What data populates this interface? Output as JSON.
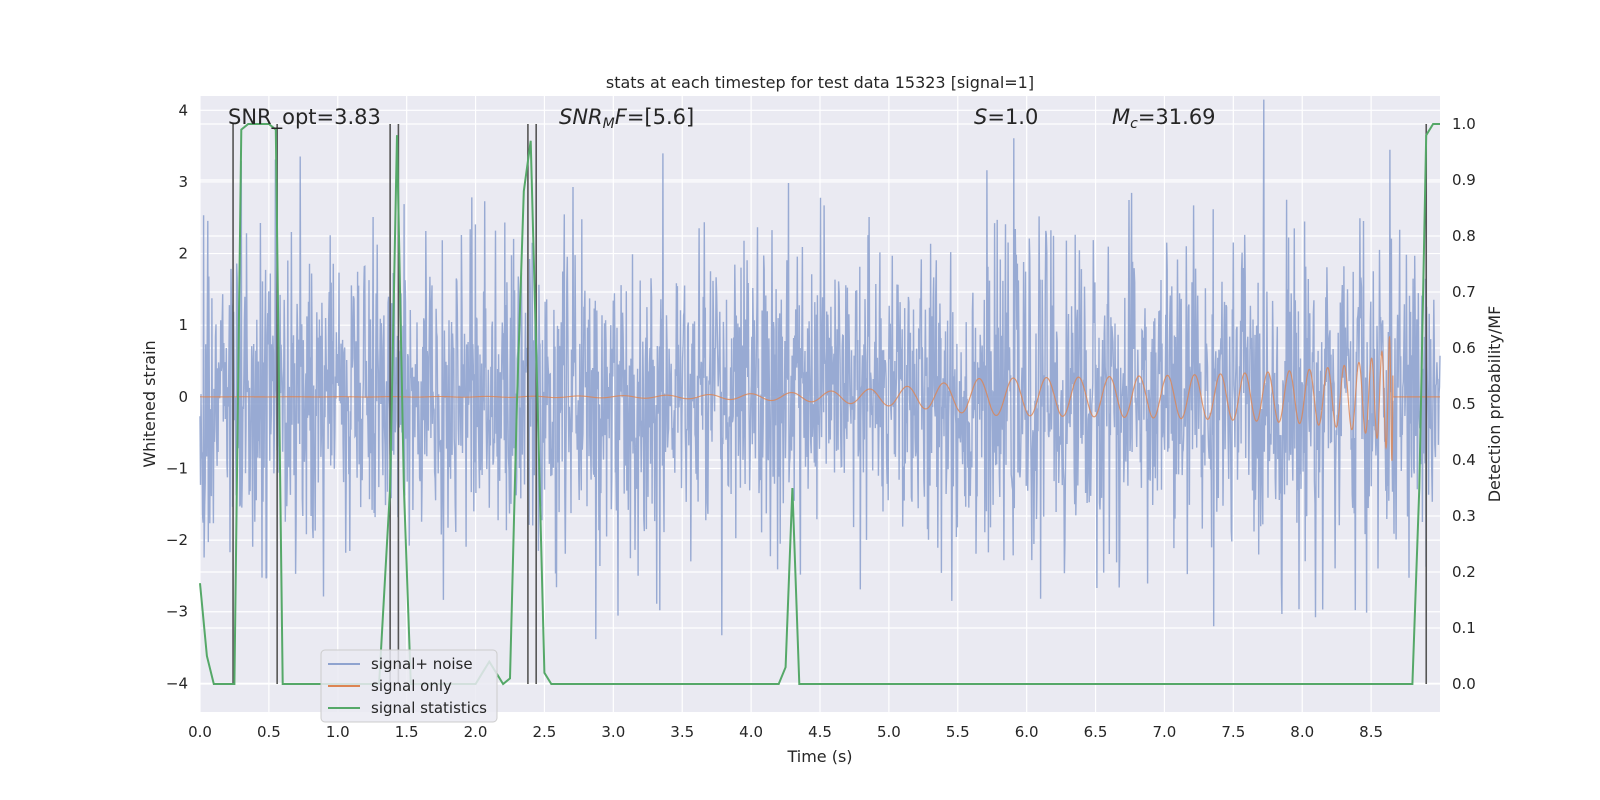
{
  "chart_data": {
    "type": "line",
    "title": "stats at each timestep for test data 15323 [signal=1]",
    "xlabel": "Time (s)",
    "ylabel_left": "Whitened strain",
    "ylabel_right": "Detection probability/MF",
    "xlim": [
      0.0,
      9.0
    ],
    "ylim_left": [
      -4.4,
      4.2
    ],
    "ylim_right": [
      -0.05,
      1.05
    ],
    "x_ticks": [
      "0.0",
      "0.5",
      "1.0",
      "1.5",
      "2.0",
      "2.5",
      "3.0",
      "3.5",
      "4.0",
      "4.5",
      "5.0",
      "5.5",
      "6.0",
      "6.5",
      "7.0",
      "7.5",
      "8.0",
      "8.5"
    ],
    "y_ticks_left": [
      "4",
      "3",
      "2",
      "1",
      "0",
      "−1",
      "−2",
      "−3",
      "−4"
    ],
    "y_ticks_right": [
      "1.0",
      "0.9",
      "0.8",
      "0.7",
      "0.6",
      "0.5",
      "0.4",
      "0.3",
      "0.2",
      "0.1",
      "0.0"
    ],
    "grid": true,
    "legend_position": "lower-left",
    "annotations": {
      "snr_opt": "SNR_opt=3.83",
      "snr_mf_main": "SNR",
      "snr_mf_sub": "M",
      "snr_mf_f": "F",
      "snr_mf_value": "=[5.6]",
      "s_main": "S",
      "s_value": "=1.0",
      "mc_main": "M",
      "mc_sub": "c",
      "mc_value": "=31.69"
    },
    "series": [
      {
        "name": "signal+ noise",
        "color": "#8fa3cf",
        "axis": "left",
        "kind": "noise",
        "envelope_std": 1.05
      },
      {
        "name": "signal only",
        "color": "#dd8452",
        "axis": "left",
        "kind": "chirp",
        "merger_time": 8.66,
        "peak_amplitude": 0.9
      },
      {
        "name": "signal statistics",
        "color": "#55a868",
        "axis": "right",
        "x": [
          0.0,
          0.05,
          0.1,
          0.15,
          0.2,
          0.25,
          0.3,
          0.35,
          0.4,
          0.45,
          0.5,
          0.55,
          0.6,
          0.65,
          0.7,
          0.8,
          0.9,
          1.0,
          1.1,
          1.2,
          1.3,
          1.38,
          1.43,
          1.48,
          1.53,
          1.6,
          1.7,
          1.8,
          1.9,
          2.0,
          2.05,
          2.1,
          2.15,
          2.2,
          2.25,
          2.3,
          2.35,
          2.4,
          2.45,
          2.5,
          2.55,
          2.6,
          2.7,
          3.0,
          3.5,
          4.0,
          4.2,
          4.25,
          4.3,
          4.35,
          4.4,
          4.5,
          4.6,
          4.7,
          4.8,
          5.0,
          5.5,
          6.0,
          6.5,
          7.0,
          7.5,
          8.0,
          8.5,
          8.8,
          8.85,
          8.9,
          8.95,
          9.0
        ],
        "values": [
          0.18,
          0.05,
          0.0,
          0.0,
          0.0,
          0.0,
          0.99,
          1.0,
          1.0,
          1.0,
          1.0,
          0.99,
          0.0,
          0.0,
          0.0,
          0.0,
          0.0,
          0.0,
          0.0,
          0.0,
          0.0,
          0.35,
          0.98,
          0.35,
          0.0,
          0.0,
          0.0,
          0.0,
          0.0,
          0.0,
          0.02,
          0.04,
          0.02,
          0.0,
          0.01,
          0.5,
          0.88,
          0.97,
          0.5,
          0.02,
          0.0,
          0.0,
          0.0,
          0.0,
          0.0,
          0.0,
          0.0,
          0.03,
          0.35,
          0.0,
          0.0,
          0.0,
          0.0,
          0.0,
          0.0,
          0.0,
          0.0,
          0.0,
          0.0,
          0.0,
          0.0,
          0.0,
          0.0,
          0.0,
          0.35,
          0.98,
          1.0,
          1.0
        ]
      }
    ],
    "vertical_markers": [
      0.24,
      0.56,
      1.38,
      1.44,
      2.38,
      2.44,
      8.9
    ],
    "colors": {
      "axes_face": "#eaeaf2",
      "grid": "#ffffff",
      "marker_line": "#555555",
      "text": "#262626"
    }
  }
}
